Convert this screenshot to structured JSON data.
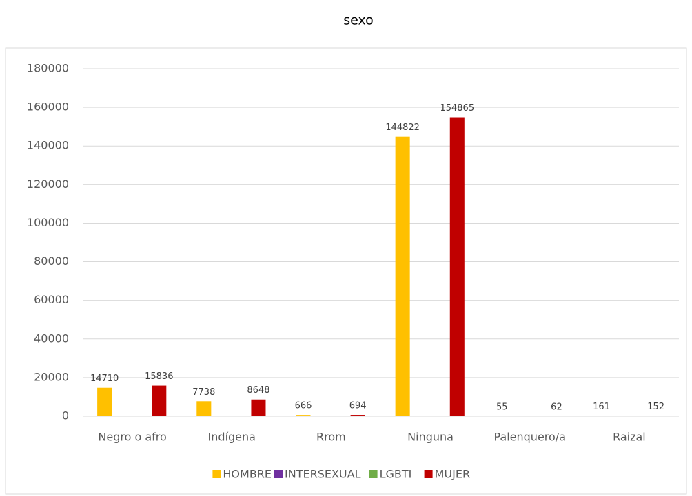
{
  "chart_data": {
    "type": "bar",
    "title": "sexo",
    "categories": [
      "Negro o afro",
      "Indígena",
      "Rrom",
      "Ninguna",
      "Palenquero/a",
      "Raizal"
    ],
    "series": [
      {
        "name": "HOMBRE",
        "color": "#ffc000",
        "values": [
          14710,
          7738,
          666,
          144822,
          55,
          161
        ],
        "labels": true
      },
      {
        "name": "INTERSEXUAL",
        "color": "#7030a0",
        "values": [
          0,
          0,
          0,
          0,
          0,
          0
        ],
        "labels": false
      },
      {
        "name": "LGBTI",
        "color": "#70ad47",
        "values": [
          0,
          0,
          0,
          0,
          0,
          0
        ],
        "labels": false
      },
      {
        "name": "MUJER",
        "color": "#c00000",
        "values": [
          15836,
          8648,
          694,
          154865,
          62,
          152
        ],
        "labels": true
      }
    ],
    "ylim": [
      0,
      180000
    ],
    "yticks": [
      0,
      20000,
      40000,
      60000,
      80000,
      100000,
      120000,
      140000,
      160000,
      180000
    ],
    "grid": true,
    "legend": "bottom"
  }
}
